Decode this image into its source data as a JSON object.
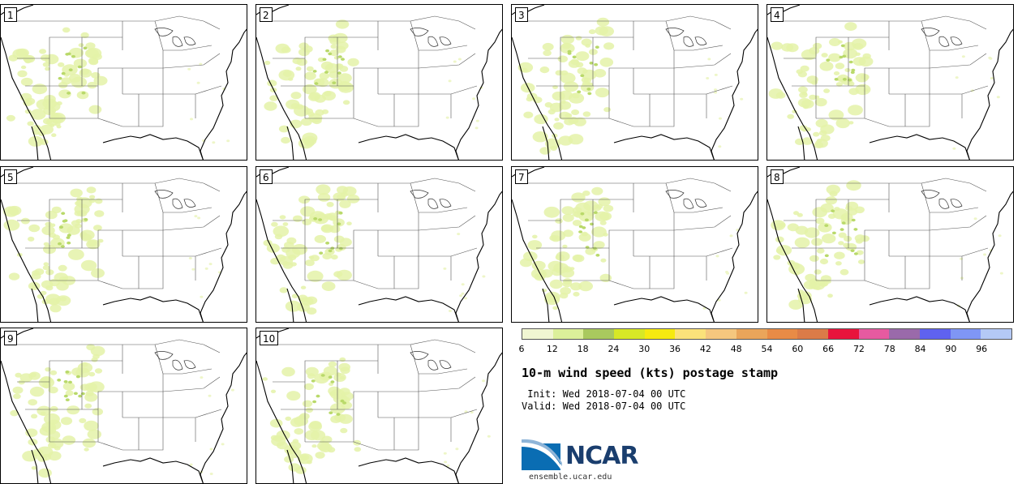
{
  "panels": [
    {
      "label": "1"
    },
    {
      "label": "2"
    },
    {
      "label": "3"
    },
    {
      "label": "4"
    },
    {
      "label": "5"
    },
    {
      "label": "6"
    },
    {
      "label": "7"
    },
    {
      "label": "8"
    },
    {
      "label": "9"
    },
    {
      "label": "10"
    }
  ],
  "colorbar": {
    "ticks": [
      "6",
      "12",
      "18",
      "24",
      "30",
      "36",
      "42",
      "48",
      "54",
      "60",
      "66",
      "72",
      "78",
      "84",
      "90",
      "96"
    ],
    "colors": [
      "#f1f6d2",
      "#dcf09a",
      "#a9c95e",
      "#d7e826",
      "#f6ea10",
      "#fbe27a",
      "#f5c77e",
      "#eaa55a",
      "#e88b46",
      "#db7b48",
      "#e8143c",
      "#e65aa0",
      "#9a6aaa",
      "#5f62ef",
      "#7f96f5",
      "#b4c9f5"
    ]
  },
  "title": "10-m wind speed (kts) postage stamp",
  "init": " Init: Wed 2018-07-04 00 UTC",
  "valid": "Valid: Wed 2018-07-04 00 UTC",
  "logo": {
    "name": "NCAR",
    "url": "ensemble.ucar.edu"
  }
}
